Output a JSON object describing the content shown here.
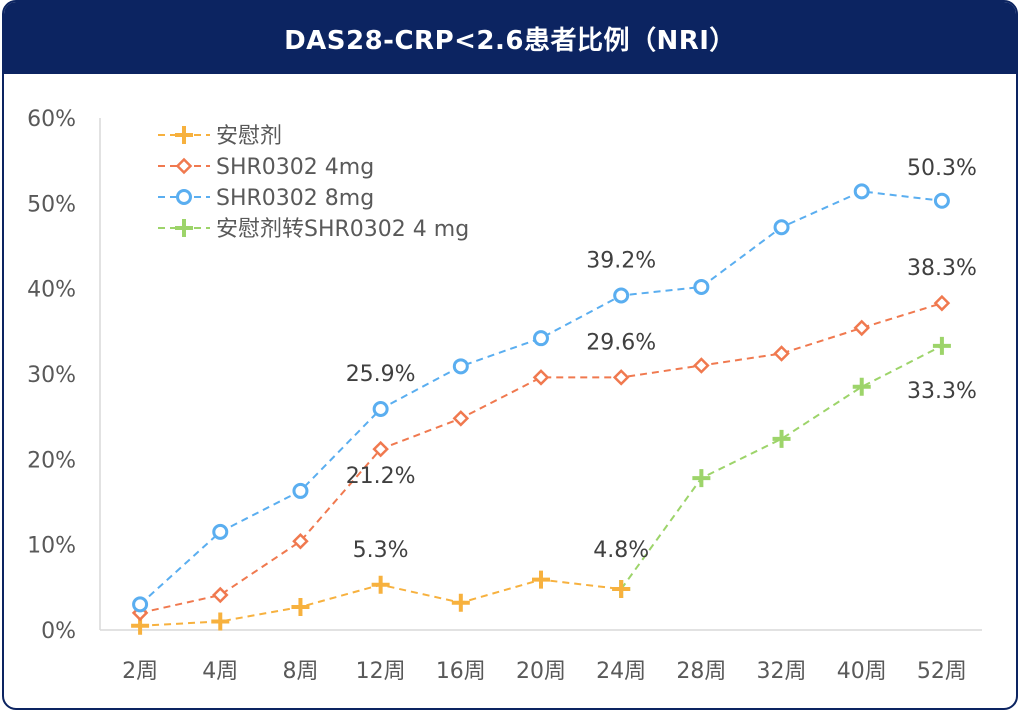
{
  "chart_data": {
    "type": "line",
    "title": "DAS28-CRP<2.6患者比例（NRI）",
    "categories": [
      "2周",
      "4周",
      "8周",
      "12周",
      "16周",
      "20周",
      "24周",
      "28周",
      "32周",
      "40周",
      "52周"
    ],
    "y_ticks": [
      "0%",
      "10%",
      "20%",
      "30%",
      "40%",
      "50%",
      "60%"
    ],
    "ylim": [
      0,
      60
    ],
    "series": [
      {
        "name": "安慰剂",
        "color": "#f7b13e",
        "marker": "plus",
        "values": [
          0.5,
          1.0,
          2.7,
          5.3,
          3.2,
          5.9,
          4.8,
          null,
          null,
          null,
          null
        ]
      },
      {
        "name": "SHR0302 4mg",
        "color": "#f0794f",
        "marker": "diamond",
        "values": [
          2.0,
          4.1,
          10.4,
          21.2,
          24.8,
          29.6,
          29.6,
          31.0,
          32.4,
          35.4,
          38.3
        ]
      },
      {
        "name": "SHR0302 8mg",
        "color": "#5aaef0",
        "marker": "circle",
        "values": [
          3.0,
          11.5,
          16.3,
          25.9,
          30.9,
          34.2,
          39.2,
          40.2,
          47.2,
          51.4,
          50.3
        ]
      },
      {
        "name": "安慰剂转SHR0302 4 mg",
        "color": "#9dd46a",
        "marker": "plus",
        "values": [
          null,
          null,
          null,
          null,
          null,
          null,
          4.8,
          17.8,
          22.4,
          28.5,
          33.3
        ]
      }
    ],
    "annotations": [
      {
        "text": "5.3%",
        "series": 0,
        "index": 3
      },
      {
        "text": "4.8%",
        "series": 0,
        "index": 6
      },
      {
        "text": "21.2%",
        "series": 1,
        "index": 3
      },
      {
        "text": "29.6%",
        "series": 1,
        "index": 6
      },
      {
        "text": "38.3%",
        "series": 1,
        "index": 10
      },
      {
        "text": "25.9%",
        "series": 2,
        "index": 3
      },
      {
        "text": "39.2%",
        "series": 2,
        "index": 6
      },
      {
        "text": "50.3%",
        "series": 2,
        "index": 10
      },
      {
        "text": "33.3%",
        "series": 3,
        "index": 10
      }
    ],
    "legend_position": "top-left"
  }
}
